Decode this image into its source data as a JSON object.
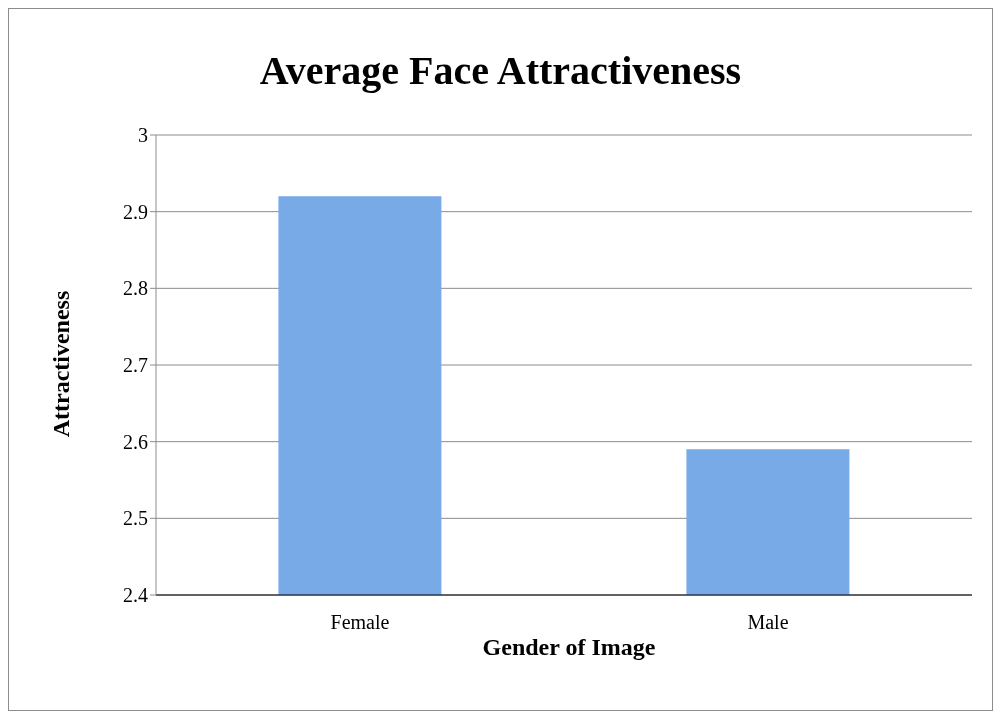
{
  "chart_data": {
    "type": "bar",
    "title": "Average Face Attractiveness",
    "xlabel": "Gender of Image",
    "ylabel": "Attractiveness",
    "categories": [
      "Female",
      "Male"
    ],
    "values": [
      2.92,
      2.59
    ],
    "color": "#78aae8",
    "ylim": [
      2.4,
      3
    ],
    "yticks": [
      2.4,
      2.5,
      2.6,
      2.7,
      2.8,
      2.9,
      3
    ],
    "grid": "y"
  }
}
